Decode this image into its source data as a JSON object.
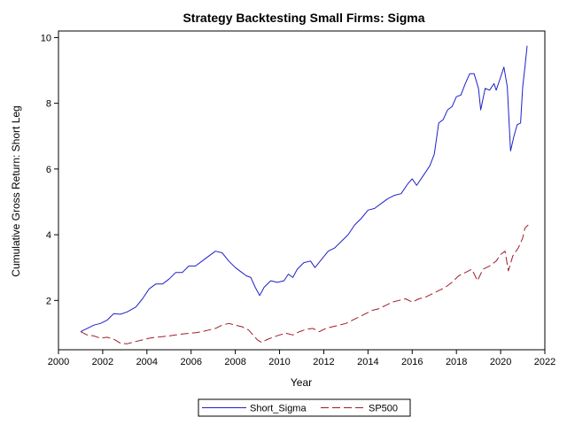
{
  "chart_data": {
    "type": "line",
    "title": "Strategy Backtesting Small Firms: Sigma",
    "xlabel": "Year",
    "ylabel": "Cumulative Gross Return: Short Leg",
    "xlim": [
      2000,
      2022
    ],
    "ylim": [
      0.5,
      10.2
    ],
    "xticks": [
      "2000",
      "2002",
      "2004",
      "2006",
      "2008",
      "2010",
      "2012",
      "2014",
      "2016",
      "2018",
      "2020",
      "2022"
    ],
    "yticks": [
      "2",
      "4",
      "6",
      "8",
      "10"
    ],
    "legend_position": "bottom",
    "series": [
      {
        "name": "Short_Sigma",
        "color": "#2020c8",
        "style": "solid",
        "points": [
          [
            2001.0,
            1.05
          ],
          [
            2001.3,
            1.15
          ],
          [
            2001.6,
            1.25
          ],
          [
            2001.9,
            1.3
          ],
          [
            2002.2,
            1.4
          ],
          [
            2002.5,
            1.6
          ],
          [
            2002.8,
            1.58
          ],
          [
            2003.1,
            1.65
          ],
          [
            2003.5,
            1.8
          ],
          [
            2003.8,
            2.05
          ],
          [
            2004.1,
            2.35
          ],
          [
            2004.4,
            2.5
          ],
          [
            2004.7,
            2.5
          ],
          [
            2005.0,
            2.65
          ],
          [
            2005.3,
            2.85
          ],
          [
            2005.6,
            2.85
          ],
          [
            2005.9,
            3.05
          ],
          [
            2006.2,
            3.05
          ],
          [
            2006.5,
            3.2
          ],
          [
            2006.8,
            3.35
          ],
          [
            2007.1,
            3.5
          ],
          [
            2007.4,
            3.45
          ],
          [
            2007.7,
            3.2
          ],
          [
            2008.0,
            3.0
          ],
          [
            2008.3,
            2.85
          ],
          [
            2008.5,
            2.75
          ],
          [
            2008.7,
            2.7
          ],
          [
            2008.9,
            2.4
          ],
          [
            2009.1,
            2.15
          ],
          [
            2009.3,
            2.4
          ],
          [
            2009.6,
            2.6
          ],
          [
            2009.9,
            2.55
          ],
          [
            2010.2,
            2.6
          ],
          [
            2010.4,
            2.8
          ],
          [
            2010.6,
            2.7
          ],
          [
            2010.8,
            2.95
          ],
          [
            2011.1,
            3.15
          ],
          [
            2011.4,
            3.2
          ],
          [
            2011.6,
            3.0
          ],
          [
            2011.9,
            3.25
          ],
          [
            2012.2,
            3.5
          ],
          [
            2012.5,
            3.6
          ],
          [
            2012.8,
            3.8
          ],
          [
            2013.1,
            4.0
          ],
          [
            2013.4,
            4.3
          ],
          [
            2013.7,
            4.5
          ],
          [
            2014.0,
            4.75
          ],
          [
            2014.3,
            4.8
          ],
          [
            2014.6,
            4.95
          ],
          [
            2014.9,
            5.1
          ],
          [
            2015.2,
            5.2
          ],
          [
            2015.5,
            5.25
          ],
          [
            2015.8,
            5.55
          ],
          [
            2016.0,
            5.7
          ],
          [
            2016.2,
            5.5
          ],
          [
            2016.5,
            5.8
          ],
          [
            2016.8,
            6.1
          ],
          [
            2017.0,
            6.45
          ],
          [
            2017.2,
            7.4
          ],
          [
            2017.4,
            7.5
          ],
          [
            2017.6,
            7.8
          ],
          [
            2017.8,
            7.9
          ],
          [
            2018.0,
            8.2
          ],
          [
            2018.2,
            8.25
          ],
          [
            2018.4,
            8.6
          ],
          [
            2018.6,
            8.9
          ],
          [
            2018.8,
            8.9
          ],
          [
            2019.0,
            8.45
          ],
          [
            2019.1,
            7.8
          ],
          [
            2019.3,
            8.45
          ],
          [
            2019.5,
            8.4
          ],
          [
            2019.7,
            8.6
          ],
          [
            2019.8,
            8.4
          ],
          [
            2020.0,
            8.8
          ],
          [
            2020.15,
            9.1
          ],
          [
            2020.3,
            8.5
          ],
          [
            2020.45,
            6.55
          ],
          [
            2020.6,
            7.0
          ],
          [
            2020.75,
            7.35
          ],
          [
            2020.9,
            7.4
          ],
          [
            2021.0,
            8.5
          ],
          [
            2021.1,
            9.1
          ],
          [
            2021.2,
            9.75
          ]
        ]
      },
      {
        "name": "SP500",
        "color": "#a01c2c",
        "style": "dashed",
        "points": [
          [
            2001.0,
            1.05
          ],
          [
            2001.3,
            0.95
          ],
          [
            2001.6,
            0.92
          ],
          [
            2001.9,
            0.85
          ],
          [
            2002.2,
            0.88
          ],
          [
            2002.5,
            0.82
          ],
          [
            2002.8,
            0.7
          ],
          [
            2003.1,
            0.68
          ],
          [
            2003.5,
            0.75
          ],
          [
            2003.8,
            0.8
          ],
          [
            2004.1,
            0.85
          ],
          [
            2004.4,
            0.88
          ],
          [
            2004.7,
            0.9
          ],
          [
            2005.0,
            0.92
          ],
          [
            2005.3,
            0.95
          ],
          [
            2005.6,
            0.98
          ],
          [
            2005.9,
            1.0
          ],
          [
            2006.2,
            1.02
          ],
          [
            2006.5,
            1.05
          ],
          [
            2006.8,
            1.1
          ],
          [
            2007.1,
            1.15
          ],
          [
            2007.4,
            1.25
          ],
          [
            2007.7,
            1.3
          ],
          [
            2008.0,
            1.25
          ],
          [
            2008.3,
            1.2
          ],
          [
            2008.6,
            1.1
          ],
          [
            2008.8,
            0.95
          ],
          [
            2009.0,
            0.8
          ],
          [
            2009.2,
            0.72
          ],
          [
            2009.4,
            0.8
          ],
          [
            2009.7,
            0.88
          ],
          [
            2010.0,
            0.95
          ],
          [
            2010.3,
            1.0
          ],
          [
            2010.6,
            0.95
          ],
          [
            2010.9,
            1.05
          ],
          [
            2011.2,
            1.12
          ],
          [
            2011.5,
            1.15
          ],
          [
            2011.8,
            1.05
          ],
          [
            2012.1,
            1.15
          ],
          [
            2012.4,
            1.2
          ],
          [
            2012.7,
            1.25
          ],
          [
            2013.0,
            1.3
          ],
          [
            2013.3,
            1.4
          ],
          [
            2013.6,
            1.5
          ],
          [
            2013.9,
            1.6
          ],
          [
            2014.2,
            1.7
          ],
          [
            2014.5,
            1.75
          ],
          [
            2014.8,
            1.85
          ],
          [
            2015.1,
            1.95
          ],
          [
            2015.4,
            2.0
          ],
          [
            2015.7,
            2.05
          ],
          [
            2016.0,
            1.95
          ],
          [
            2016.3,
            2.05
          ],
          [
            2016.6,
            2.1
          ],
          [
            2016.9,
            2.2
          ],
          [
            2017.2,
            2.3
          ],
          [
            2017.5,
            2.4
          ],
          [
            2017.8,
            2.55
          ],
          [
            2018.1,
            2.75
          ],
          [
            2018.4,
            2.85
          ],
          [
            2018.7,
            2.95
          ],
          [
            2018.95,
            2.6
          ],
          [
            2019.2,
            2.95
          ],
          [
            2019.5,
            3.05
          ],
          [
            2019.8,
            3.2
          ],
          [
            2020.0,
            3.4
          ],
          [
            2020.2,
            3.5
          ],
          [
            2020.35,
            2.9
          ],
          [
            2020.55,
            3.35
          ],
          [
            2020.8,
            3.6
          ],
          [
            2021.0,
            3.9
          ],
          [
            2021.1,
            4.2
          ],
          [
            2021.25,
            4.3
          ]
        ]
      }
    ]
  }
}
